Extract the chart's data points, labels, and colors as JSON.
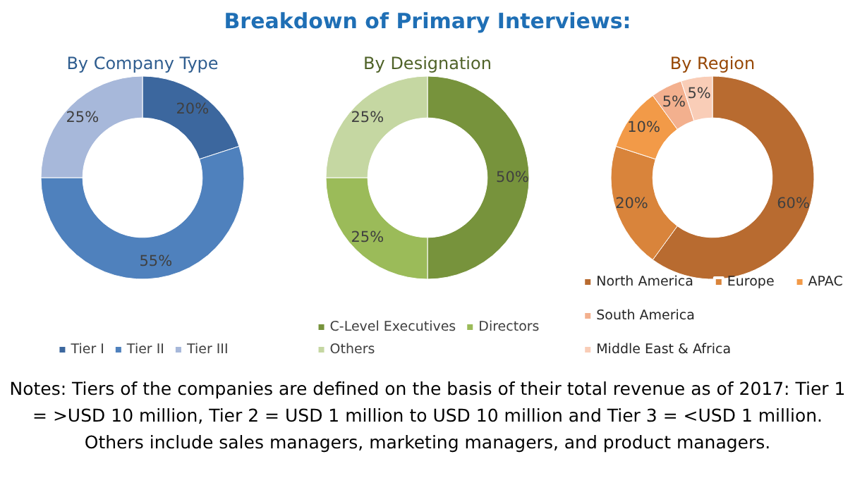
{
  "chart_data": [
    {
      "type": "other",
      "title": "Breakdown of Primary Interviews:"
    },
    {
      "type": "donut",
      "title": "By Company Type",
      "categories": [
        "Tier I",
        "Tier II",
        "Tier III"
      ],
      "values": [
        20,
        55,
        25
      ],
      "value_labels": [
        "20%",
        "55%",
        "25%"
      ],
      "colors": [
        "#3c679e",
        "#4f81bd",
        "#a7b8da"
      ],
      "legend": "bottom"
    },
    {
      "type": "donut",
      "title": "By Designation",
      "categories": [
        "C-Level Executives",
        "Directors",
        "Others"
      ],
      "values": [
        50,
        25,
        25
      ],
      "value_labels": [
        "50%",
        "25%",
        "25%"
      ],
      "colors": [
        "#77933c",
        "#9bbb59",
        "#c5d7a2"
      ],
      "legend": "bottom"
    },
    {
      "type": "donut",
      "title": "By Region",
      "categories": [
        "North America",
        "Europe",
        "APAC",
        "South America",
        "Middle East & Africa"
      ],
      "values": [
        60,
        20,
        10,
        5,
        5
      ],
      "value_labels": [
        "60%",
        "20%",
        "10%",
        "5%",
        "5%"
      ],
      "colors": [
        "#b86b30",
        "#d9843b",
        "#f29a48",
        "#f3b08e",
        "#f9cdb7"
      ],
      "legend": "bottom"
    },
    {
      "type": "other",
      "annotations": [
        "Notes: Tiers of the companies are defined on the basis of their total revenue as of 2017: Tier 1 = >USD 10 million, Tier 2 = USD 1 million to USD 10 million and Tier 3 = <USD 1 million.",
        "Others include sales managers, marketing managers, and product managers."
      ]
    }
  ]
}
